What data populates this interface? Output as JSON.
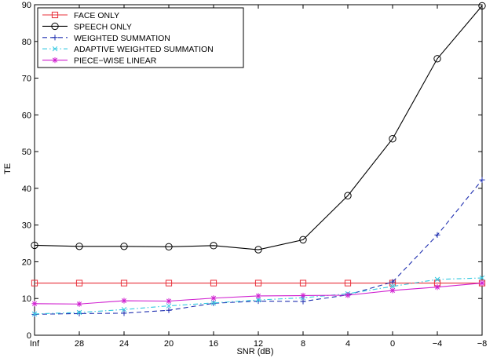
{
  "chart_data": {
    "type": "line",
    "title": "",
    "xlabel": "SNR (dB)",
    "ylabel": "TE",
    "categories": [
      "Inf",
      "28",
      "24",
      "20",
      "16",
      "12",
      "8",
      "4",
      "0",
      "−4",
      "−8"
    ],
    "ylim": [
      0,
      90
    ],
    "yticks": [
      0,
      10,
      20,
      30,
      40,
      50,
      60,
      70,
      80,
      90
    ],
    "grid": false,
    "legend_position": "top-left",
    "series": [
      {
        "name": "FACE ONLY",
        "color": "#e8303a",
        "marker": "square",
        "dash": "solid",
        "values": [
          14.2,
          14.2,
          14.2,
          14.2,
          14.2,
          14.2,
          14.2,
          14.2,
          14.2,
          14.2,
          14.2
        ]
      },
      {
        "name": "SPEECH ONLY",
        "color": "#000000",
        "marker": "circle",
        "dash": "solid",
        "values": [
          24.5,
          24.2,
          24.2,
          24.1,
          24.4,
          23.3,
          26.0,
          38.0,
          53.5,
          75.3,
          89.7
        ]
      },
      {
        "name": "WEIGHTED SUMMATION",
        "color": "#1f2fb0",
        "marker": "plus",
        "dash": "dashed",
        "values": [
          5.7,
          5.9,
          6.0,
          6.8,
          8.7,
          9.3,
          9.2,
          11.0,
          14.5,
          27.3,
          42.3
        ]
      },
      {
        "name": "ADAPTIVE WEIGHTED SUMMATION",
        "color": "#33c8e0",
        "marker": "x",
        "dash": "dashdot",
        "values": [
          5.8,
          6.2,
          7.0,
          8.0,
          8.8,
          9.6,
          10.2,
          11.3,
          13.3,
          15.2,
          15.6
        ]
      },
      {
        "name": "PIECE−WISE LINEAR",
        "color": "#d020d0",
        "marker": "star",
        "dash": "solid",
        "values": [
          8.6,
          8.5,
          9.4,
          9.3,
          10.1,
          10.7,
          10.8,
          10.9,
          12.2,
          13.1,
          14.2
        ]
      }
    ]
  }
}
